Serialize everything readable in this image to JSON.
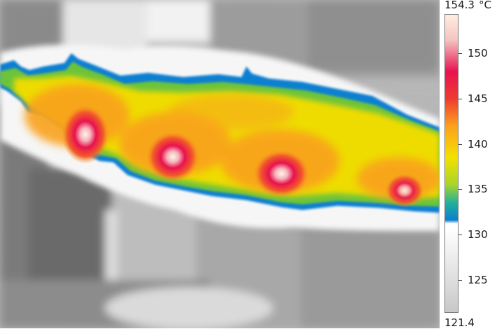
{
  "scale": {
    "max_value": "154.3",
    "unit": "°C",
    "min_value": "121.4",
    "ticks": [
      {
        "label": "150",
        "value": 150
      },
      {
        "label": "145",
        "value": 145
      },
      {
        "label": "140",
        "value": 140
      },
      {
        "label": "135",
        "value": 135
      },
      {
        "label": "130",
        "value": 130
      },
      {
        "label": "125",
        "value": 125
      }
    ],
    "range": [
      121.4,
      154.3
    ],
    "palette": [
      "#c8c8c8",
      "#ffffff",
      "#0a7fd1",
      "#22b19a",
      "#a8d52a",
      "#f3e100",
      "#fba11c",
      "#ef3b32",
      "#e8124f",
      "#f4c4c0",
      "#ffeee0"
    ]
  },
  "image": {
    "hot_spots": [
      {
        "name": "hot-spot-1",
        "temperature": 154
      },
      {
        "name": "hot-spot-2",
        "temperature": 152
      },
      {
        "name": "hot-spot-3",
        "temperature": 150
      },
      {
        "name": "hot-spot-4",
        "temperature": 146
      }
    ]
  }
}
